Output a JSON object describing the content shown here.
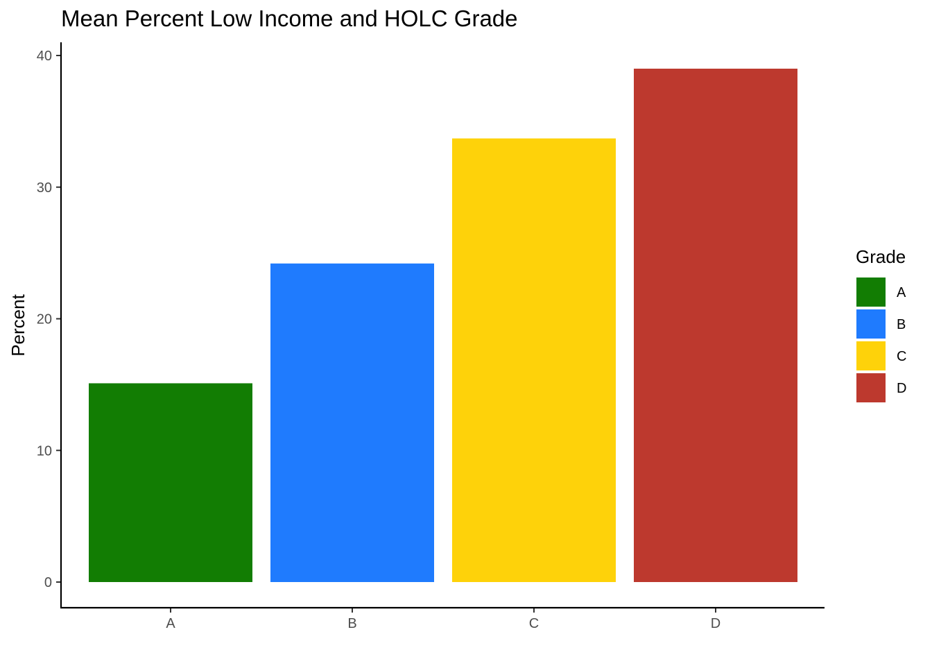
{
  "chart_data": {
    "type": "bar",
    "title": "Mean Percent Low Income and HOLC Grade",
    "xlabel": "",
    "ylabel": "Percent",
    "categories": [
      "A",
      "B",
      "C",
      "D"
    ],
    "values": [
      15.1,
      24.2,
      33.7,
      39.0
    ],
    "ylim": [
      0,
      40
    ],
    "yticks": [
      0,
      10,
      20,
      30,
      40
    ],
    "grid": false,
    "legend": {
      "title": "Grade",
      "placement": "right",
      "entries": [
        "A",
        "B",
        "C",
        "D"
      ]
    },
    "colors": {
      "A": "#127D03",
      "B": "#1F7BFE",
      "C": "#FED20A",
      "D": "#BD392E"
    }
  }
}
